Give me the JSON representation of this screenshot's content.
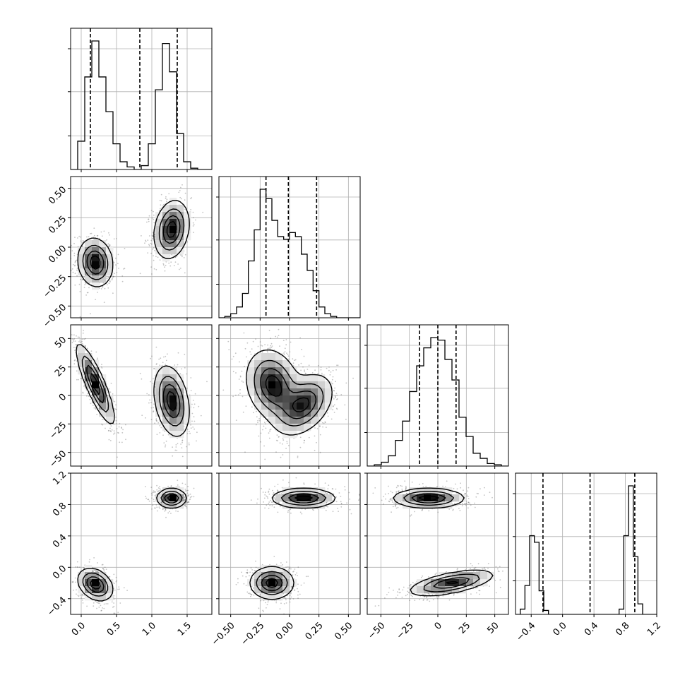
{
  "chart_data": {
    "type": "corner",
    "title": "",
    "grid": true,
    "params": [
      {
        "range": [
          -0.15,
          1.85
        ],
        "ticks": [
          0.0,
          0.5,
          1.0,
          1.5
        ],
        "tick_labels": [
          "0.0",
          "0.5",
          "1.0",
          "1.5"
        ],
        "quantiles": [
          0.13,
          0.83,
          1.36
        ]
      },
      {
        "range": [
          -0.6,
          0.6
        ],
        "ticks": [
          -0.5,
          -0.25,
          0.0,
          0.25,
          0.5
        ],
        "tick_labels": [
          "−0.50",
          "−0.25",
          "0.00",
          "0.25",
          "0.50"
        ],
        "quantiles": [
          -0.2,
          -0.01,
          0.23
        ]
      },
      {
        "range": [
          -62,
          62
        ],
        "ticks": [
          -50,
          -25,
          0,
          25,
          50
        ],
        "tick_labels": [
          "−50",
          "−25",
          "0",
          "25",
          "50"
        ],
        "quantiles": [
          -16,
          0,
          16
        ]
      },
      {
        "range": [
          -0.6,
          1.2
        ],
        "ticks": [
          -0.4,
          0.0,
          0.4,
          0.8,
          1.2
        ],
        "tick_labels": [
          "−0.4",
          "0.0",
          "0.4",
          "0.8",
          "1.2"
        ],
        "quantiles": [
          -0.25,
          0.35,
          0.92
        ]
      }
    ],
    "histograms": [
      {
        "param": 0,
        "edges_start": -0.15,
        "bin_width": 0.1,
        "counts": [
          0.0,
          0.22,
          0.72,
          1.0,
          0.72,
          0.45,
          0.2,
          0.06,
          0.02,
          0.0,
          0.03,
          0.2,
          0.62,
          0.98,
          0.76,
          0.28,
          0.06,
          0.01,
          0.0,
          0.0
        ]
      },
      {
        "param": 1,
        "edges_start": -0.6,
        "bin_width": 0.05,
        "counts": [
          0.0,
          0.01,
          0.03,
          0.08,
          0.18,
          0.42,
          0.65,
          0.95,
          0.88,
          0.72,
          0.6,
          0.58,
          0.63,
          0.6,
          0.47,
          0.35,
          0.2,
          0.08,
          0.03,
          0.01,
          0.0,
          0.0,
          0.0,
          0.0
        ]
      },
      {
        "param": 2,
        "edges_start": -62,
        "bin_width": 6.2,
        "counts": [
          0.0,
          0.01,
          0.03,
          0.08,
          0.2,
          0.35,
          0.58,
          0.78,
          0.92,
          1.0,
          0.98,
          0.83,
          0.67,
          0.38,
          0.23,
          0.1,
          0.06,
          0.02,
          0.01,
          0.0
        ]
      },
      {
        "param": 3,
        "edges_start": -0.6,
        "bin_width": 0.06,
        "counts": [
          0.0,
          0.04,
          0.22,
          0.6,
          0.55,
          0.18,
          0.03,
          0.0,
          0.0,
          0.0,
          0.0,
          0.0,
          0.0,
          0.0,
          0.0,
          0.0,
          0.0,
          0.0,
          0.0,
          0.0,
          0.0,
          0.0,
          0.04,
          0.6,
          0.98,
          0.44,
          0.08,
          0.0,
          0.0,
          0.0
        ]
      }
    ],
    "joint": [
      {
        "x_param": 0,
        "y_param": 1,
        "modes": [
          {
            "cx": 0.2,
            "cy": -0.13,
            "sx": 0.12,
            "sy": 0.1,
            "rho": -0.1,
            "w": 1.0
          },
          {
            "cx": 1.28,
            "cy": 0.15,
            "sx": 0.12,
            "sy": 0.12,
            "rho": 0.2,
            "w": 1.0
          }
        ]
      },
      {
        "x_param": 0,
        "y_param": 2,
        "modes": [
          {
            "cx": 0.2,
            "cy": 10,
            "sx": 0.13,
            "sy": 17,
            "rho": -0.85,
            "w": 1.0
          },
          {
            "cx": 1.28,
            "cy": -5,
            "sx": 0.12,
            "sy": 15,
            "rho": -0.3,
            "w": 1.0
          }
        ]
      },
      {
        "x_param": 1,
        "y_param": 2,
        "modes": [
          {
            "cx": -0.14,
            "cy": 9,
            "sx": 0.11,
            "sy": 15,
            "rho": -0.2,
            "w": 1.0
          },
          {
            "cx": 0.12,
            "cy": -8,
            "sx": 0.12,
            "sy": 13,
            "rho": 0.4,
            "w": 0.9
          }
        ]
      },
      {
        "x_param": 0,
        "y_param": 3,
        "modes": [
          {
            "cx": 0.2,
            "cy": -0.22,
            "sx": 0.12,
            "sy": 0.1,
            "rho": -0.3,
            "w": 1.0
          },
          {
            "cx": 1.28,
            "cy": 0.88,
            "sx": 0.1,
            "sy": 0.06,
            "rho": 0.0,
            "w": 1.0
          }
        ]
      },
      {
        "x_param": 1,
        "y_param": 3,
        "modes": [
          {
            "cx": -0.15,
            "cy": -0.2,
            "sx": 0.09,
            "sy": 0.1,
            "rho": 0.0,
            "w": 1.0
          },
          {
            "cx": 0.12,
            "cy": 0.88,
            "sx": 0.13,
            "sy": 0.06,
            "rho": 0.0,
            "w": 1.0
          }
        ]
      },
      {
        "x_param": 2,
        "y_param": 3,
        "modes": [
          {
            "cx": -8,
            "cy": 0.88,
            "sx": 15,
            "sy": 0.06,
            "rho": 0.0,
            "w": 1.0
          },
          {
            "cx": 12,
            "cy": -0.2,
            "sx": 18,
            "sy": 0.08,
            "rho": 0.6,
            "w": 0.9
          }
        ]
      }
    ]
  }
}
